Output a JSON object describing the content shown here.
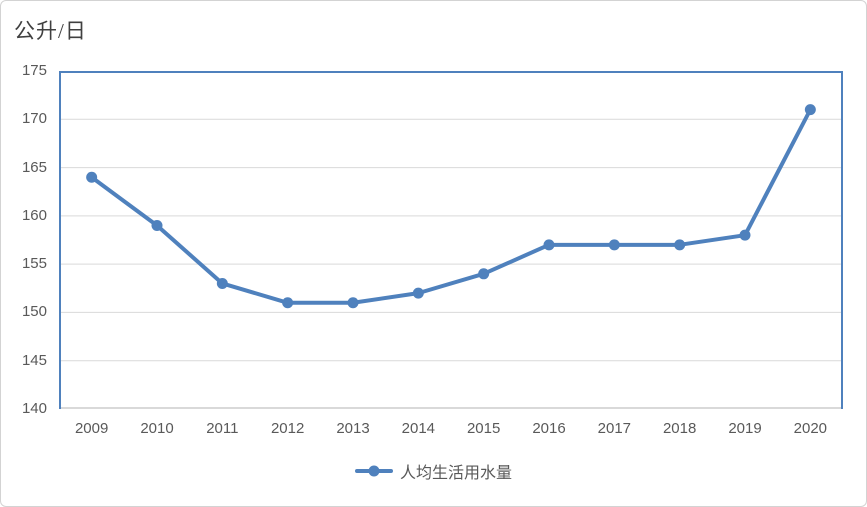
{
  "chart_data": {
    "type": "line",
    "title": "公升/日",
    "categories": [
      "2009",
      "2010",
      "2011",
      "2012",
      "2013",
      "2014",
      "2015",
      "2016",
      "2017",
      "2018",
      "2019",
      "2020"
    ],
    "series": [
      {
        "name": "人均生活用水量",
        "values": [
          164,
          159,
          153,
          151,
          151,
          152,
          154,
          157,
          157,
          157,
          158,
          171
        ]
      }
    ],
    "xlabel": "",
    "ylabel": "公升/日",
    "ylim": [
      140,
      175
    ],
    "ytick_step": 5,
    "grid": "horizontal",
    "legend_position": "bottom",
    "marker": "circle",
    "colors": {
      "line": "#4f81bd",
      "plot_border": "#4f81bd",
      "gridline": "#d9d9d9",
      "axis_line": "#d9d9d9",
      "tick_label": "#595959",
      "title": "#404040",
      "legend_text": "#595959",
      "outer_border": "#d3d3d3",
      "background": "#ffffff"
    }
  }
}
